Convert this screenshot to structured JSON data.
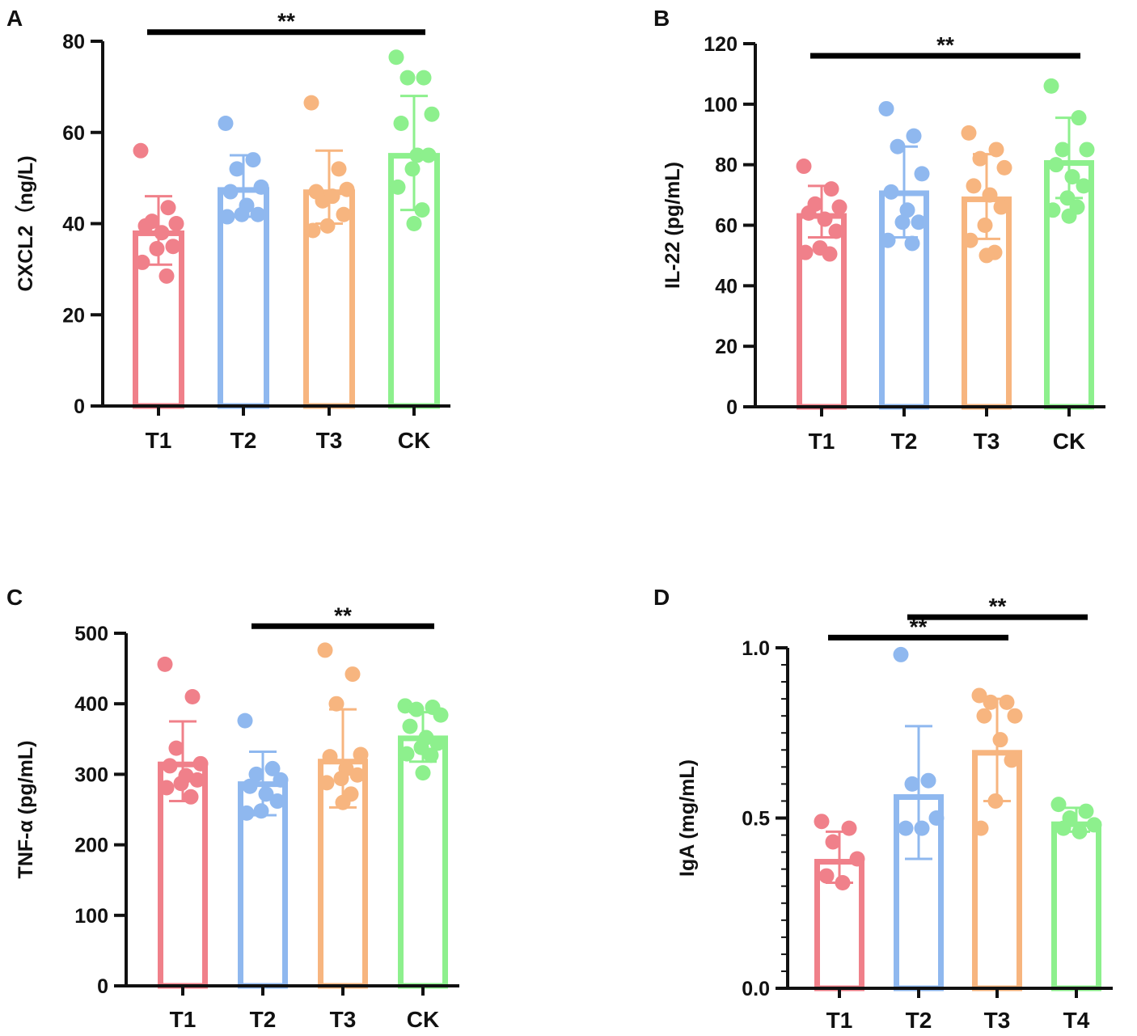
{
  "figure_title": "",
  "colors": {
    "T1": "#f0808a",
    "T2": "#8fb8ef",
    "T3": "#f7b57f",
    "T4": "#8df08d",
    "CK": "#8df08d",
    "axis": "#111111",
    "sig_bar": "#000000"
  },
  "chart_data": [
    {
      "panel": "A",
      "type": "bar",
      "ylabel": "CXCL2（ng/L)",
      "xlabel": "",
      "categories": [
        "T1",
        "T2",
        "T3",
        "CK"
      ],
      "ylim": [
        0,
        80
      ],
      "yticks": [
        "0",
        "20",
        "40",
        "60",
        "80"
      ],
      "ytick_values": [
        0,
        20,
        40,
        60,
        80
      ],
      "minor_ticks": 0,
      "means": [
        38.5,
        48,
        47.5,
        55.5
      ],
      "errors": [
        [
          31,
          46
        ],
        [
          41.5,
          55
        ],
        [
          40,
          56
        ],
        [
          43,
          68
        ]
      ],
      "points": [
        [
          56,
          43.5,
          40.5,
          40,
          39.5,
          38,
          35,
          34.5,
          31.5,
          28.5
        ],
        [
          62,
          54,
          52,
          48,
          47,
          44,
          42,
          42,
          41.5
        ],
        [
          66.5,
          52,
          45,
          47.5,
          47,
          46,
          42,
          39.5,
          38.5
        ],
        [
          76.5,
          72,
          72,
          64,
          62,
          55,
          55,
          52,
          48,
          43,
          40
        ]
      ],
      "significance": [
        {
          "from": 0,
          "to": 3,
          "y": 82,
          "label": "**"
        }
      ]
    },
    {
      "panel": "B",
      "type": "bar",
      "ylabel": "IL-22 (pg/mL)",
      "xlabel": "",
      "categories": [
        "T1",
        "T2",
        "T3",
        "CK"
      ],
      "ylim": [
        0,
        120
      ],
      "yticks": [
        "0",
        "20",
        "40",
        "60",
        "80",
        "100",
        "120"
      ],
      "ytick_values": [
        0,
        20,
        40,
        60,
        80,
        100,
        120
      ],
      "minor_ticks": 0,
      "means": [
        64,
        71.5,
        69.5,
        81.5
      ],
      "errors": [
        [
          56,
          73
        ],
        [
          56,
          86
        ],
        [
          55.5,
          83.5
        ],
        [
          69,
          95.5
        ]
      ],
      "points": [
        [
          79.5,
          72,
          67,
          66,
          64,
          62,
          58,
          52.5,
          51,
          50.5
        ],
        [
          98.5,
          89.5,
          86,
          77,
          71,
          65,
          61,
          61,
          55,
          54
        ],
        [
          90.5,
          85,
          82,
          79,
          73,
          70,
          66,
          60,
          55,
          51,
          50
        ],
        [
          106,
          95.5,
          85,
          85,
          80,
          76,
          73,
          69,
          65,
          66,
          63
        ]
      ],
      "significance": [
        {
          "from": 0,
          "to": 3,
          "y": 116,
          "label": "**"
        }
      ]
    },
    {
      "panel": "C",
      "type": "bar",
      "ylabel": "TNF-α (pg/mL)",
      "xlabel": "",
      "categories": [
        "T1",
        "T2",
        "T3",
        "CK"
      ],
      "ylim": [
        0,
        500
      ],
      "yticks": [
        "0",
        "100",
        "200",
        "300",
        "400",
        "500"
      ],
      "ytick_values": [
        0,
        100,
        200,
        300,
        400,
        500
      ],
      "minor_ticks": 0,
      "means": [
        318,
        290,
        322,
        355
      ],
      "errors": [
        [
          262,
          375
        ],
        [
          242,
          332
        ],
        [
          253,
          392
        ],
        [
          318,
          388
        ]
      ],
      "points": [
        [
          456,
          410,
          337,
          315,
          312,
          298,
          292,
          287,
          281,
          268
        ],
        [
          376,
          308,
          300,
          292,
          283,
          272,
          262,
          248,
          245
        ],
        [
          476,
          442,
          400,
          328,
          325,
          308,
          299,
          294,
          288,
          272,
          260
        ],
        [
          397,
          395,
          392,
          384,
          368,
          352,
          344,
          338,
          329,
          327,
          302
        ]
      ],
      "significance": [
        {
          "from": 1,
          "to": 3,
          "y": 510,
          "label": "**"
        }
      ]
    },
    {
      "panel": "D",
      "type": "bar",
      "ylabel": "IgA (mg/mL)",
      "xlabel": "",
      "categories": [
        "T1",
        "T2",
        "T3",
        "T4"
      ],
      "ylim": [
        0,
        1
      ],
      "yticks": [
        "0.0",
        "0.5",
        "1.0"
      ],
      "ytick_values": [
        0,
        0.5,
        1
      ],
      "minor_ticks": 10,
      "means": [
        0.38,
        0.57,
        0.7,
        0.49
      ],
      "errors": [
        [
          0.31,
          0.46
        ],
        [
          0.38,
          0.77
        ],
        [
          0.55,
          0.85
        ],
        [
          0.46,
          0.53
        ]
      ],
      "points": [
        [
          0.49,
          0.47,
          0.43,
          0.38,
          0.33,
          0.31
        ],
        [
          0.98,
          0.61,
          0.6,
          0.5,
          0.47,
          0.47
        ],
        [
          0.86,
          0.84,
          0.84,
          0.8,
          0.8,
          0.73,
          0.67,
          0.55,
          0.47
        ],
        [
          0.54,
          0.52,
          0.5,
          0.48,
          0.47,
          0.46
        ]
      ],
      "significance": [
        {
          "from": 0,
          "to": 2,
          "y": 1.03,
          "label": "**"
        },
        {
          "from": 1,
          "to": 3,
          "y": 1.09,
          "label": "**"
        }
      ]
    }
  ]
}
